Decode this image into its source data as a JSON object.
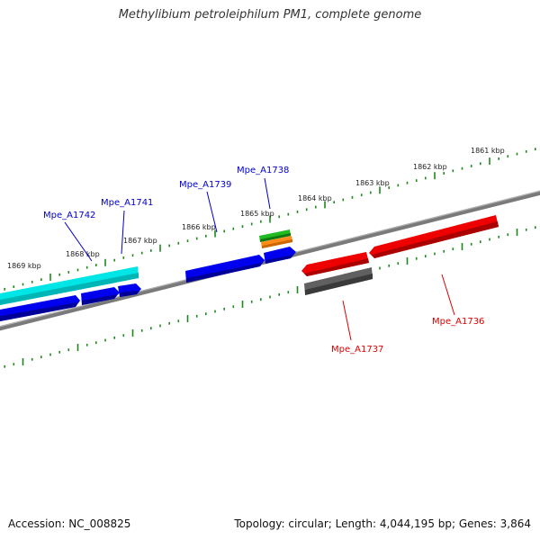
{
  "title": "Methylibium petroleiphilum PM1, complete genome",
  "footer": {
    "accession": "Accession: NC_008825",
    "summary": "Topology: circular; Length: 4,044,195 bp; Genes: 3,864"
  },
  "kbp_labels": [
    "1861 kbp",
    "1862 kbp",
    "1863 kbp",
    "1864 kbp",
    "1865 kbp",
    "1866 kbp",
    "1867 kbp",
    "1868 kbp",
    "1869 kbp"
  ],
  "gene_labels": {
    "mpe_a1736": "Mpe_A1736",
    "mpe_a1737": "Mpe_A1737",
    "mpe_a1738": "Mpe_A1738",
    "mpe_a1739": "Mpe_A1739",
    "mpe_a1741": "Mpe_A1741",
    "mpe_a1742": "Mpe_A1742"
  },
  "colors": {
    "forward_gene_label": "#0000cc",
    "reverse_gene_label": "#dd0000",
    "tick": "#1a8a1a",
    "backbone": "#808080",
    "blue_gene": "#0000ee",
    "cyan_gene": "#00e5e5",
    "red_gene": "#ee0000",
    "gray_gene": "#606060",
    "green_gene": "#22bb22",
    "orange_gene": "#ff8c1a"
  }
}
